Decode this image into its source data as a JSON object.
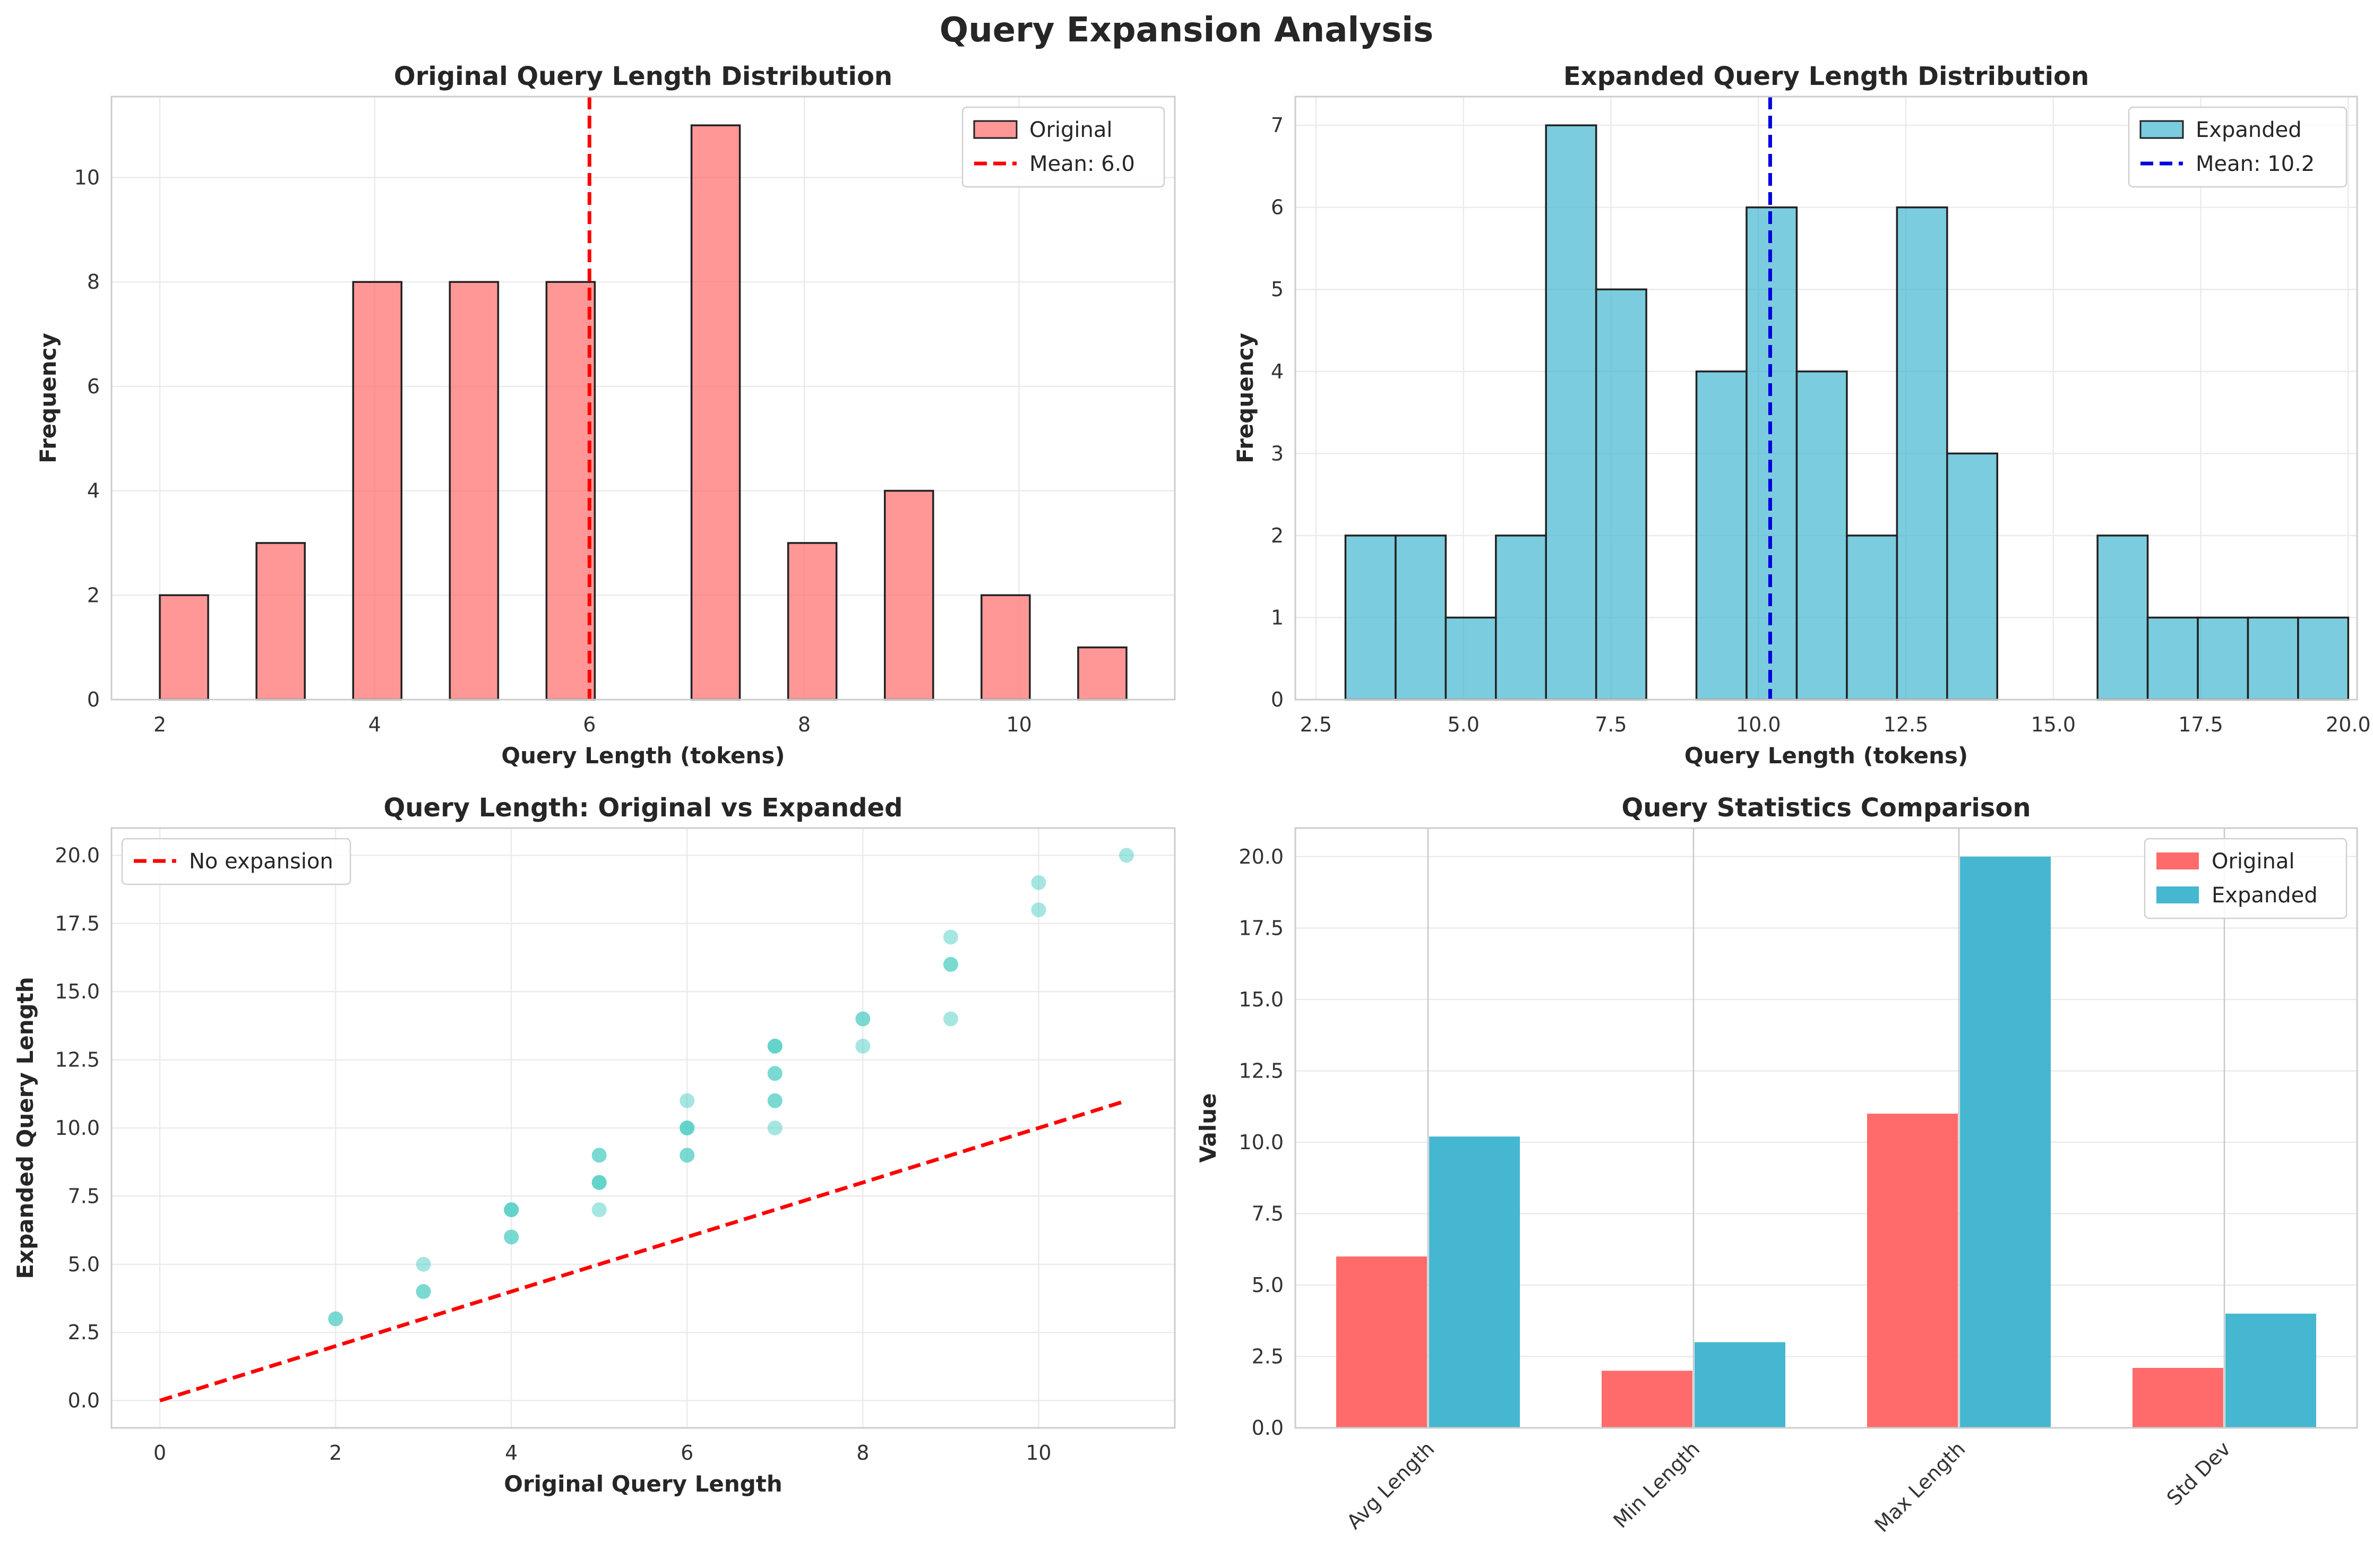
{
  "suptitle": "Query Expansion Analysis",
  "colors": {
    "original": "#ff6b6b",
    "expanded": "#45b7d1",
    "scatter": "#4ecdc4",
    "mean_original": "#ff0000",
    "mean_expanded": "#0000dd",
    "grid": "#ebebeb",
    "spine": "#cccccc",
    "edge": "#222222"
  },
  "chart_data": [
    {
      "id": "orig_hist",
      "type": "bar",
      "title": "Original Query Length Distribution",
      "xlabel": "Query Length (tokens)",
      "ylabel": "Frequency",
      "xlim": [
        1.55,
        11.45
      ],
      "ylim": [
        0,
        11.55
      ],
      "xticks": [
        2,
        4,
        6,
        8,
        10
      ],
      "yticks": [
        0,
        2,
        4,
        6,
        8,
        10
      ],
      "bin_width": 0.45,
      "bins": [
        {
          "x0": 2.0,
          "value": 2
        },
        {
          "x0": 2.9,
          "value": 3
        },
        {
          "x0": 3.8,
          "value": 8
        },
        {
          "x0": 4.7,
          "value": 8
        },
        {
          "x0": 5.6,
          "value": 8
        },
        {
          "x0": 6.95,
          "value": 11
        },
        {
          "x0": 7.85,
          "value": 3
        },
        {
          "x0": 8.75,
          "value": 4
        },
        {
          "x0": 9.65,
          "value": 2
        },
        {
          "x0": 10.55,
          "value": 1
        }
      ],
      "mean": 6.0,
      "legend": [
        {
          "kind": "patch",
          "label": "Original"
        },
        {
          "kind": "line",
          "label": "Mean: 6.0"
        }
      ],
      "legend_loc": "upper right",
      "grid": true
    },
    {
      "id": "exp_hist",
      "type": "bar",
      "title": "Expanded Query Length Distribution",
      "xlabel": "Query Length (tokens)",
      "ylabel": "Frequency",
      "xlim": [
        2.15,
        20.15
      ],
      "ylim": [
        0,
        7.35
      ],
      "xticks": [
        2.5,
        5.0,
        7.5,
        10.0,
        12.5,
        15.0,
        17.5,
        20.0
      ],
      "yticks": [
        0,
        1,
        2,
        3,
        4,
        5,
        6,
        7
      ],
      "bin_width": 0.85,
      "bins": [
        {
          "x0": 3.0,
          "value": 2
        },
        {
          "x0": 3.85,
          "value": 2
        },
        {
          "x0": 4.7,
          "value": 1
        },
        {
          "x0": 5.55,
          "value": 2
        },
        {
          "x0": 6.4,
          "value": 7
        },
        {
          "x0": 7.25,
          "value": 5
        },
        {
          "x0": 8.95,
          "value": 4
        },
        {
          "x0": 9.8,
          "value": 6
        },
        {
          "x0": 10.65,
          "value": 4
        },
        {
          "x0": 11.5,
          "value": 2
        },
        {
          "x0": 12.35,
          "value": 6
        },
        {
          "x0": 13.2,
          "value": 3
        },
        {
          "x0": 15.75,
          "value": 2
        },
        {
          "x0": 16.6,
          "value": 1
        },
        {
          "x0": 17.45,
          "value": 1
        },
        {
          "x0": 18.3,
          "value": 1
        },
        {
          "x0": 19.15,
          "value": 1
        }
      ],
      "mean": 10.2,
      "legend": [
        {
          "kind": "patch",
          "label": "Expanded"
        },
        {
          "kind": "line",
          "label": "Mean: 10.2"
        }
      ],
      "legend_loc": "upper right",
      "grid": true
    },
    {
      "id": "scatter",
      "type": "scatter",
      "title": "Query Length: Original vs Expanded",
      "xlabel": "Original Query Length",
      "ylabel": "Expanded Query Length",
      "xlim": [
        -0.55,
        11.55
      ],
      "ylim": [
        -1.0,
        21.0
      ],
      "xticks": [
        0,
        2,
        4,
        6,
        8,
        10
      ],
      "yticks": [
        0.0,
        2.5,
        5.0,
        7.5,
        10.0,
        12.5,
        15.0,
        17.5,
        20.0
      ],
      "points": [
        [
          2,
          3
        ],
        [
          2,
          3
        ],
        [
          3,
          4
        ],
        [
          3,
          4
        ],
        [
          3,
          5
        ],
        [
          4,
          6
        ],
        [
          4,
          6
        ],
        [
          4,
          7
        ],
        [
          4,
          7
        ],
        [
          4,
          7
        ],
        [
          5,
          7
        ],
        [
          5,
          8
        ],
        [
          5,
          8
        ],
        [
          5,
          8
        ],
        [
          5,
          9
        ],
        [
          5,
          9
        ],
        [
          6,
          9
        ],
        [
          6,
          9
        ],
        [
          6,
          10
        ],
        [
          6,
          10
        ],
        [
          6,
          10
        ],
        [
          6,
          11
        ],
        [
          7,
          10
        ],
        [
          7,
          11
        ],
        [
          7,
          11
        ],
        [
          7,
          12
        ],
        [
          7,
          12
        ],
        [
          7,
          13
        ],
        [
          7,
          13
        ],
        [
          7,
          13
        ],
        [
          8,
          13
        ],
        [
          8,
          14
        ],
        [
          8,
          14
        ],
        [
          9,
          14
        ],
        [
          9,
          16
        ],
        [
          9,
          16
        ],
        [
          9,
          17
        ],
        [
          10,
          18
        ],
        [
          10,
          19
        ],
        [
          11,
          20
        ]
      ],
      "reference_line": {
        "label": "No expansion",
        "from": [
          0,
          0
        ],
        "to": [
          11,
          11
        ]
      },
      "legend": [
        {
          "kind": "line",
          "label": "No expansion"
        }
      ],
      "legend_loc": "upper left",
      "grid": true
    },
    {
      "id": "stats_bar",
      "type": "bar",
      "title": "Query Statistics Comparison",
      "xlabel": "",
      "ylabel": "Value",
      "categories": [
        "Avg Length",
        "Min Length",
        "Max Length",
        "Std Dev"
      ],
      "series": [
        {
          "name": "Original",
          "values": [
            6.0,
            2.0,
            11.0,
            2.1
          ]
        },
        {
          "name": "Expanded",
          "values": [
            10.2,
            3.0,
            20.0,
            4.0
          ]
        }
      ],
      "ylim": [
        0,
        21.0
      ],
      "yticks": [
        0.0,
        2.5,
        5.0,
        7.5,
        10.0,
        12.5,
        15.0,
        17.5,
        20.0
      ],
      "legend": [
        {
          "kind": "patch",
          "label": "Original"
        },
        {
          "kind": "patch",
          "label": "Expanded"
        }
      ],
      "legend_loc": "upper right",
      "grid": true
    }
  ]
}
